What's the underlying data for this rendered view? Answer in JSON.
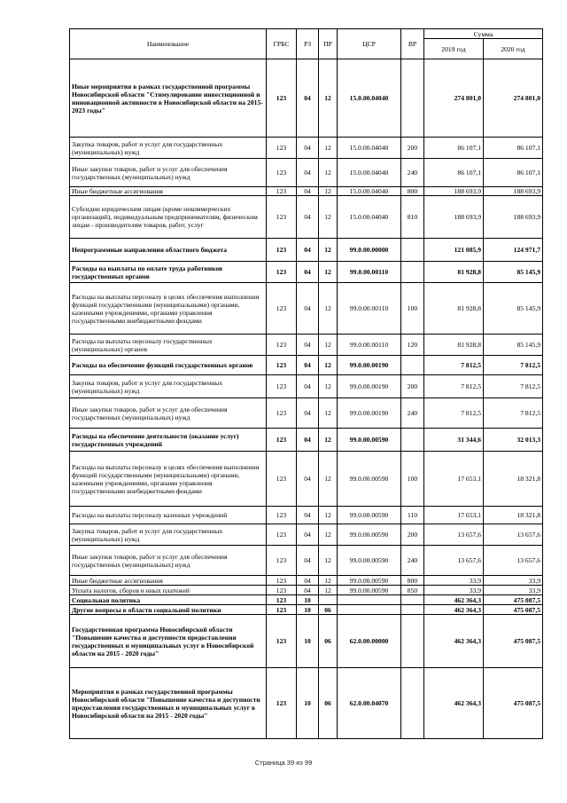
{
  "header": {
    "name": "Наименование",
    "grbs": "ГРБС",
    "rz": "РЗ",
    "pr": "ПР",
    "csr": "ЦСР",
    "vr": "ВР",
    "sum": "Сумма",
    "y2019": "2019 год",
    "y2020": "2020 год"
  },
  "rows": [
    {
      "bold": true,
      "name": "Иные мероприятия в рамках государственной программы Новосибирской области \"Стимулирование инвестиционной и инновационной активности в Новосибирской области на 2015-2023 годы\"",
      "grbs": "123",
      "rz": "04",
      "pr": "12",
      "csr": "15.0.00.04040",
      "vr": "",
      "y2019": "274 801,0",
      "y2020": "274 801,0"
    },
    {
      "bold": false,
      "name": "Закупка товаров, работ и услуг для государственных (муниципальных) нужд",
      "grbs": "123",
      "rz": "04",
      "pr": "12",
      "csr": "15.0.00.04040",
      "vr": "200",
      "y2019": "86 107,1",
      "y2020": "86 107,1"
    },
    {
      "bold": false,
      "name": "Иные закупки товаров, работ и услуг для обеспечения государственных (муниципальных) нужд",
      "grbs": "123",
      "rz": "04",
      "pr": "12",
      "csr": "15.0.00.04040",
      "vr": "240",
      "y2019": "86 107,1",
      "y2020": "86 107,1"
    },
    {
      "bold": false,
      "name": "Иные бюджетные ассигнования",
      "grbs": "123",
      "rz": "04",
      "pr": "12",
      "csr": "15.0.00.04040",
      "vr": "800",
      "y2019": "188 693,9",
      "y2020": "188 693,9"
    },
    {
      "bold": false,
      "name": "Субсидии юридическим лицам (кроме некоммерческих организаций), индивидуальным предпринимателям, физическим лицам - производителям товаров, работ, услуг",
      "grbs": "123",
      "rz": "04",
      "pr": "12",
      "csr": "15.0.00.04040",
      "vr": "810",
      "y2019": "188 693,9",
      "y2020": "188 693,9"
    },
    {
      "bold": true,
      "name": "Непрограммные направления областного бюджета",
      "grbs": "123",
      "rz": "04",
      "pr": "12",
      "csr": "99.0.00.00000",
      "vr": "",
      "y2019": "121 085,9",
      "y2020": "124 971,7"
    },
    {
      "bold": true,
      "name": "Расходы на выплаты по оплате труда работников государственных органов",
      "grbs": "123",
      "rz": "04",
      "pr": "12",
      "csr": "99.0.00.00110",
      "vr": "",
      "y2019": "81 928,8",
      "y2020": "85 145,9"
    },
    {
      "bold": false,
      "name": "Расходы на выплаты персоналу в целях обеспечения выполнения функций государственными (муниципальными) органами, казенными учреждениями, органами управления государственными внебюджетными фондами",
      "grbs": "123",
      "rz": "04",
      "pr": "12",
      "csr": "99.0.00.00110",
      "vr": "100",
      "y2019": "81 928,8",
      "y2020": "85 145,9"
    },
    {
      "bold": false,
      "name": "Расходы на выплаты персоналу государственных (муниципальных) органов",
      "grbs": "123",
      "rz": "04",
      "pr": "12",
      "csr": "99.0.00.00110",
      "vr": "120",
      "y2019": "81 928,8",
      "y2020": "85 145,9"
    },
    {
      "bold": true,
      "name": "Расходы на обеспечение функций государственных органов",
      "grbs": "123",
      "rz": "04",
      "pr": "12",
      "csr": "99.0.00.00190",
      "vr": "",
      "y2019": "7 812,5",
      "y2020": "7 812,5"
    },
    {
      "bold": false,
      "name": "Закупка товаров, работ и услуг для государственных (муниципальных) нужд",
      "grbs": "123",
      "rz": "04",
      "pr": "12",
      "csr": "99.0.00.00190",
      "vr": "200",
      "y2019": "7 812,5",
      "y2020": "7 812,5"
    },
    {
      "bold": false,
      "name": "Иные закупки товаров, работ и услуг для обеспечения государственных (муниципальных) нужд",
      "grbs": "123",
      "rz": "04",
      "pr": "12",
      "csr": "99.0.00.00190",
      "vr": "240",
      "y2019": "7 812,5",
      "y2020": "7 812,5"
    },
    {
      "bold": true,
      "name": "Расходы на обеспечение деятельности (оказание услуг) государственных учреждений",
      "grbs": "123",
      "rz": "04",
      "pr": "12",
      "csr": "99.0.00.00590",
      "vr": "",
      "y2019": "31 344,6",
      "y2020": "32 013,3"
    },
    {
      "bold": false,
      "name": "Расходы на выплаты персоналу в целях обеспечения выполнения функций государственными (муниципальными) органами, казенными учреждениями, органами управления государственными внебюджетными фондами",
      "grbs": "123",
      "rz": "04",
      "pr": "12",
      "csr": "99.0.00.00590",
      "vr": "100",
      "y2019": "17 653,1",
      "y2020": "18 321,8"
    },
    {
      "bold": false,
      "name": "Расходы на выплаты персоналу казенных учреждений",
      "grbs": "123",
      "rz": "04",
      "pr": "12",
      "csr": "99.0.00.00590",
      "vr": "110",
      "y2019": "17 653,1",
      "y2020": "18 321,8"
    },
    {
      "bold": false,
      "name": "Закупка товаров, работ и услуг для государственных (муниципальных) нужд",
      "grbs": "123",
      "rz": "04",
      "pr": "12",
      "csr": "99.0.00.00590",
      "vr": "200",
      "y2019": "13 657,6",
      "y2020": "13 657,6"
    },
    {
      "bold": false,
      "name": "Иные закупки товаров, работ и услуг для обеспечения государственных (муниципальных) нужд",
      "grbs": "123",
      "rz": "04",
      "pr": "12",
      "csr": "99.0.00.00590",
      "vr": "240",
      "y2019": "13 657,6",
      "y2020": "13 657,6"
    },
    {
      "bold": false,
      "name": "Иные бюджетные ассигнования",
      "grbs": "123",
      "rz": "04",
      "pr": "12",
      "csr": "99.0.00.00590",
      "vr": "800",
      "y2019": "33,9",
      "y2020": "33,9"
    },
    {
      "bold": false,
      "name": "Уплата налогов, сборов и иных платежей",
      "grbs": "123",
      "rz": "04",
      "pr": "12",
      "csr": "99.0.00.00590",
      "vr": "850",
      "y2019": "33,9",
      "y2020": "33,9"
    },
    {
      "bold": true,
      "name": "Социальная политика",
      "grbs": "123",
      "rz": "10",
      "pr": "",
      "csr": "",
      "vr": "",
      "y2019": "462 364,3",
      "y2020": "475 087,5"
    },
    {
      "bold": true,
      "name": "Другие вопросы в области социальной политики",
      "grbs": "123",
      "rz": "10",
      "pr": "06",
      "csr": "",
      "vr": "",
      "y2019": "462 364,3",
      "y2020": "475 087,5"
    },
    {
      "bold": true,
      "name": "Государственная программа Новосибирской области \"Повышение качества и доступности предоставления государственных и муниципальных услуг в Новосибирской области  на 2015 - 2020 годы\"",
      "grbs": "123",
      "rz": "10",
      "pr": "06",
      "csr": "62.0.00.00000",
      "vr": "",
      "y2019": "462 364,3",
      "y2020": "475 087,5"
    },
    {
      "bold": true,
      "name": "Мероприятия в рамках государственной программы Новосибирской области \"Повышение качества и доступности предоставления государственных и муниципальных услуг в Новосибирской области  на 2015 - 2020 годы\"",
      "grbs": "123",
      "rz": "10",
      "pr": "06",
      "csr": "62.0.00.04070",
      "vr": "",
      "y2019": "462 364,3",
      "y2020": "475 087,5"
    }
  ],
  "footer": {
    "page": "Страница 39 из 99"
  }
}
